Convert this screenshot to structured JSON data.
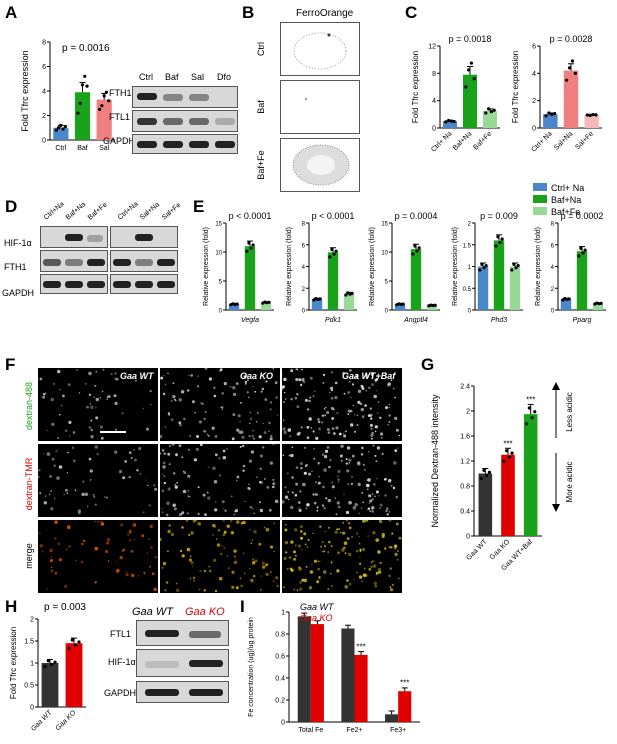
{
  "panels": {
    "A": "A",
    "B": "B",
    "C": "C",
    "D": "D",
    "E": "E",
    "F": "F",
    "G": "G",
    "H": "H",
    "I": "I"
  },
  "colors": {
    "ctrl": "#4a86c8",
    "baf": "#1aa31a",
    "sal": "#f07f7f",
    "fe": "#98d998",
    "dark": "#333333",
    "red": "#e00000"
  },
  "panelA": {
    "ylabel": "Fold Tfrc expression",
    "pvalue": "p = 0.0016",
    "blot_lanes": [
      "Ctrl",
      "Baf",
      "Sal",
      "Dfo"
    ],
    "blot_rows": [
      "FTH1",
      "FTL1",
      "GAPDH"
    ]
  },
  "panelB": {
    "title": "FerroOrange",
    "rows": [
      "Ctrl",
      "Baf",
      "Baf+Fe"
    ]
  },
  "panelC": {
    "ylabel": "Fold Tfrc expression"
  },
  "panelD": {
    "lanes_left": [
      "Ctrl+Na",
      "Baf+Na",
      "Baf+Fe"
    ],
    "lanes_right": [
      "Ctrl+Na",
      "Sal+Na",
      "Sal+Fe"
    ],
    "rows": [
      "HIF-1α",
      "FTH1",
      "GAPDH"
    ]
  },
  "panelE": {
    "legend": [
      "Ctrl+ Na",
      "Baf+Na",
      "Baf+Fe"
    ],
    "ylabel": "Relative expression (fold)"
  },
  "panelF": {
    "cols": [
      "Gaa WT",
      "Gaa KO",
      "Gaa WT+Baf"
    ],
    "rows": [
      "dextran-488",
      "dextran-TMR",
      "merge"
    ]
  },
  "panelG": {
    "ylabel": "Normalized Dextran-488 intensity",
    "arrow_up": "Less acidic",
    "arrow_down": "More acidic"
  },
  "panelH": {
    "ylabel": "Fold Tfrc expression",
    "pvalue": "p = 0.003",
    "blot_cols": [
      "Gaa WT",
      "Gaa KO"
    ],
    "blot_rows": [
      "FTL1",
      "HIF-1α",
      "GAPDH"
    ]
  },
  "panelI": {
    "ylabel": "Fe concentration (ug)/ug protein",
    "legend": [
      "Gaa WT",
      "Gaa KO"
    ]
  },
  "chart_data": [
    {
      "id": "A",
      "type": "bar",
      "categories": [
        "Ctrl",
        "Baf",
        "Sal"
      ],
      "values": [
        1.0,
        3.9,
        3.3
      ],
      "errors": [
        0.2,
        0.8,
        0.5
      ],
      "points": [
        [
          0.8,
          1.0,
          1.2,
          0.9,
          1.1
        ],
        [
          2.2,
          3.0,
          4.5,
          5.2,
          4.4
        ],
        [
          2.5,
          2.8,
          3.6,
          3.9,
          3.2
        ]
      ],
      "colors": [
        "#4a86c8",
        "#1aa31a",
        "#f07f7f"
      ],
      "ylim": [
        0,
        8
      ],
      "yticks": [
        0,
        2,
        4,
        6,
        8
      ],
      "ylabel": "Fold Tfrc expression",
      "annotation": "p = 0.0016"
    },
    {
      "id": "C1",
      "type": "bar",
      "categories": [
        "Ctrl+ Na",
        "Baf+Na",
        "Baf+Fe"
      ],
      "values": [
        1.0,
        7.8,
        2.5
      ],
      "errors": [
        0.15,
        1.2,
        0.3
      ],
      "points": [
        [
          0.9,
          1.1,
          1.0,
          0.95
        ],
        [
          6.0,
          8.5,
          9.5,
          7.2
        ],
        [
          2.2,
          2.8,
          2.4,
          2.6
        ]
      ],
      "colors": [
        "#4a86c8",
        "#1aa31a",
        "#98d998"
      ],
      "ylim": [
        0,
        12
      ],
      "yticks": [
        0,
        4,
        8,
        12
      ],
      "annotation": "p = 0.0018"
    },
    {
      "id": "C2",
      "type": "bar",
      "categories": [
        "Ctrl+ Na",
        "Sal+Na",
        "Sal+Fe"
      ],
      "values": [
        1.0,
        4.2,
        0.95
      ],
      "errors": [
        0.1,
        0.5,
        0.05
      ],
      "points": [
        [
          0.9,
          1.1,
          1.0,
          1.05
        ],
        [
          3.5,
          4.4,
          4.9,
          4.0
        ],
        [
          0.95,
          0.92,
          0.98,
          0.96
        ]
      ],
      "colors": [
        "#4a86c8",
        "#f07f7f",
        "#f4b8b8"
      ],
      "ylim": [
        0,
        6
      ],
      "yticks": [
        0,
        2,
        4,
        6
      ],
      "annotation": "p = 0.0028"
    },
    {
      "id": "E-Vegfa",
      "type": "bar",
      "xlabel": "Vegfa",
      "categories": [
        "Ctrl+ Na",
        "Baf+Na",
        "Baf+Fe"
      ],
      "values": [
        1.0,
        11.0,
        1.3
      ],
      "ylim": [
        0,
        15
      ],
      "yticks": [
        0,
        5,
        10,
        15
      ],
      "annotation": "p < 0.0001"
    },
    {
      "id": "E-Pdk1",
      "type": "bar",
      "xlabel": "Pdk1",
      "categories": [
        "Ctrl+ Na",
        "Baf+Na",
        "Baf+Fe"
      ],
      "values": [
        1.0,
        5.3,
        1.5
      ],
      "ylim": [
        0,
        8
      ],
      "yticks": [
        0,
        2,
        4,
        6,
        8
      ],
      "annotation": "p < 0.0001"
    },
    {
      "id": "E-Angptl4",
      "type": "bar",
      "xlabel": "Angptl4",
      "categories": [
        "Ctrl+ Na",
        "Baf+Na",
        "Baf+Fe"
      ],
      "values": [
        1.0,
        10.5,
        0.8
      ],
      "ylim": [
        0,
        15
      ],
      "yticks": [
        0,
        5,
        10,
        15
      ],
      "annotation": "p = 0.0004"
    },
    {
      "id": "E-Phd3",
      "type": "bar",
      "xlabel": "Phd3",
      "categories": [
        "Ctrl+ Na",
        "Baf+Na",
        "Baf+Fe"
      ],
      "values": [
        1.0,
        1.6,
        1.0
      ],
      "ylim": [
        0,
        2
      ],
      "yticks": [
        0,
        0.5,
        1.0,
        1.5,
        2.0
      ],
      "annotation": "p = 0.009"
    },
    {
      "id": "E-Pparg",
      "type": "bar",
      "xlabel": "Pparg",
      "categories": [
        "Ctrl+ Na",
        "Baf+Na",
        "Baf+Fe"
      ],
      "values": [
        1.0,
        5.4,
        0.6
      ],
      "ylim": [
        0,
        8
      ],
      "yticks": [
        0,
        2,
        4,
        6,
        8
      ],
      "annotation": "p = 0.0002"
    },
    {
      "id": "G",
      "type": "bar",
      "categories": [
        "Gaa WT",
        "Gaa KO",
        "Gaa WT+Baf"
      ],
      "values": [
        1.0,
        1.3,
        1.95
      ],
      "colors": [
        "#333333",
        "#e00000",
        "#1aa31a"
      ],
      "ylim": [
        0,
        2.4
      ],
      "yticks": [
        0,
        0.4,
        0.8,
        1.2,
        1.6,
        2.0,
        2.4
      ],
      "stars": [
        "",
        "***",
        "***"
      ],
      "ylabel": "Normalized Dextran-488 intensity"
    },
    {
      "id": "H",
      "type": "bar",
      "categories": [
        "Gaa WT",
        "Gaa KO"
      ],
      "values": [
        1.0,
        1.45
      ],
      "colors": [
        "#333333",
        "#e00000"
      ],
      "ylim": [
        0,
        2.0
      ],
      "yticks": [
        0,
        0.5,
        1.0,
        1.5,
        2.0
      ],
      "ylabel": "Fold Tfrc expression",
      "annotation": "p = 0.003"
    },
    {
      "id": "I",
      "type": "bar",
      "categories": [
        "Total Fe",
        "Fe2+",
        "Fe3+"
      ],
      "series": [
        {
          "name": "Gaa WT",
          "values": [
            0.96,
            0.85,
            0.07
          ]
        },
        {
          "name": "Gaa KO",
          "values": [
            0.89,
            0.61,
            0.28
          ]
        }
      ],
      "colors": [
        "#333333",
        "#e00000"
      ],
      "ylim": [
        0,
        1.0
      ],
      "yticks": [
        0,
        0.2,
        0.4,
        0.6,
        0.8,
        1.0
      ],
      "stars": [
        "",
        "***",
        "***"
      ],
      "ylabel": "Fe concentration (ug)/ug protein"
    }
  ]
}
